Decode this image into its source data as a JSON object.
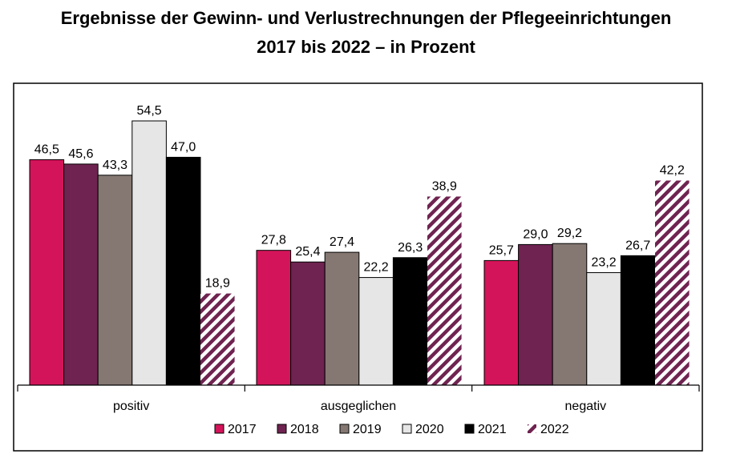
{
  "chart_data": {
    "type": "bar",
    "title": "Ergebnisse der Gewinn- und Verlustrechnungen der Pflegeeinrichtungen",
    "subtitle": "2017 bis 2022 – in Prozent",
    "categories": [
      "positiv",
      "ausgeglichen",
      "negativ"
    ],
    "series": [
      {
        "name": "2017",
        "color": "#d4145a",
        "pattern": "solid",
        "values": [
          46.5,
          27.8,
          25.7
        ],
        "labels": [
          "46,5",
          "27,8",
          "25,7"
        ]
      },
      {
        "name": "2018",
        "color": "#6f2350",
        "pattern": "solid",
        "values": [
          45.6,
          25.4,
          29.0
        ],
        "labels": [
          "45,6",
          "25,4",
          "29,0"
        ]
      },
      {
        "name": "2019",
        "color": "#857872",
        "pattern": "solid",
        "values": [
          43.3,
          27.4,
          29.2
        ],
        "labels": [
          "43,3",
          "27,4",
          "29,2"
        ]
      },
      {
        "name": "2020",
        "color": "#e6e6e6",
        "pattern": "solid",
        "values": [
          54.5,
          22.2,
          23.2
        ],
        "labels": [
          "54,5",
          "22,2",
          "23,2"
        ]
      },
      {
        "name": "2021",
        "color": "#000000",
        "pattern": "solid",
        "values": [
          47.0,
          26.3,
          26.7
        ],
        "labels": [
          "47,0",
          "26,3",
          "26,7"
        ]
      },
      {
        "name": "2022",
        "color": "#6f2350",
        "pattern": "hatched",
        "values": [
          18.9,
          38.9,
          42.2
        ],
        "labels": [
          "18,9",
          "38,9",
          "42,2"
        ]
      }
    ],
    "ylim": [
      0,
      60
    ],
    "grid": false,
    "legend": "bottom",
    "xlabel": "",
    "ylabel": ""
  }
}
